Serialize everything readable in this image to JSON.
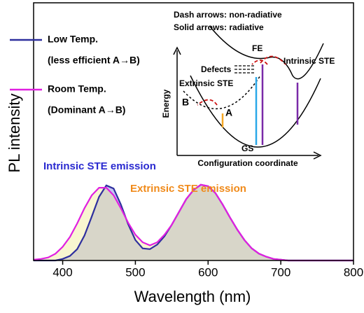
{
  "chart_data": {
    "type": "line",
    "y_label": "PL intensity",
    "x_label": "Wavelength (nm)",
    "x": [
      360,
      370,
      380,
      390,
      400,
      410,
      420,
      430,
      440,
      450,
      460,
      470,
      480,
      490,
      500,
      510,
      520,
      530,
      540,
      550,
      560,
      570,
      580,
      590,
      600,
      610,
      620,
      630,
      640,
      650,
      660,
      670,
      680,
      690,
      700,
      710,
      720,
      730,
      740,
      750,
      760,
      770,
      780,
      790,
      800
    ],
    "series": [
      {
        "name": "Low Temp.",
        "note": "(less efficient A→B)",
        "color": "#2e2f9e",
        "fill": "rgba(90,90,220,0.35)",
        "values": [
          0,
          0,
          0,
          0,
          0.02,
          0.06,
          0.15,
          0.33,
          0.58,
          0.84,
          0.99,
          0.95,
          0.74,
          0.48,
          0.27,
          0.16,
          0.15,
          0.21,
          0.32,
          0.47,
          0.64,
          0.81,
          0.93,
          1.0,
          0.98,
          0.89,
          0.74,
          0.57,
          0.41,
          0.27,
          0.16,
          0.09,
          0.05,
          0.02,
          0.01,
          0,
          0,
          0,
          0,
          0,
          0,
          0,
          0,
          0,
          0
        ]
      },
      {
        "name": "Room Temp.",
        "note": "(Dominant A→B)",
        "color": "#e020e0",
        "fill": "rgba(240,235,150,0.45)",
        "values": [
          0.01,
          0.02,
          0.04,
          0.09,
          0.18,
          0.31,
          0.49,
          0.69,
          0.86,
          0.96,
          0.96,
          0.86,
          0.69,
          0.5,
          0.34,
          0.24,
          0.2,
          0.24,
          0.34,
          0.47,
          0.64,
          0.81,
          0.93,
          1.0,
          0.98,
          0.89,
          0.74,
          0.57,
          0.41,
          0.27,
          0.16,
          0.09,
          0.05,
          0.02,
          0.01,
          0,
          0,
          0,
          0,
          0,
          0,
          0,
          0,
          0,
          0
        ]
      }
    ],
    "xlim": [
      360,
      800
    ],
    "xticks": [
      400,
      500,
      600,
      700,
      800
    ],
    "ylim": [
      0,
      3.4
    ],
    "annotations": [
      {
        "text": "Intrinsic STE emission",
        "color": "#2a2ad0"
      },
      {
        "text": "Extrinsic STE emission",
        "color": "#f08a1a"
      }
    ],
    "inset": {
      "legend1": "Dash arrows: non-radiative",
      "legend2": "Solid arrows: radiative",
      "fe": "FE",
      "intrinsic": "Intrinsic STE",
      "defects": "Defects",
      "extrinsic": "Extrinsic STE",
      "b": "B",
      "a": "A",
      "gs": "GS",
      "y_label": "Energy",
      "x_label": "Configuration coordinate"
    }
  }
}
